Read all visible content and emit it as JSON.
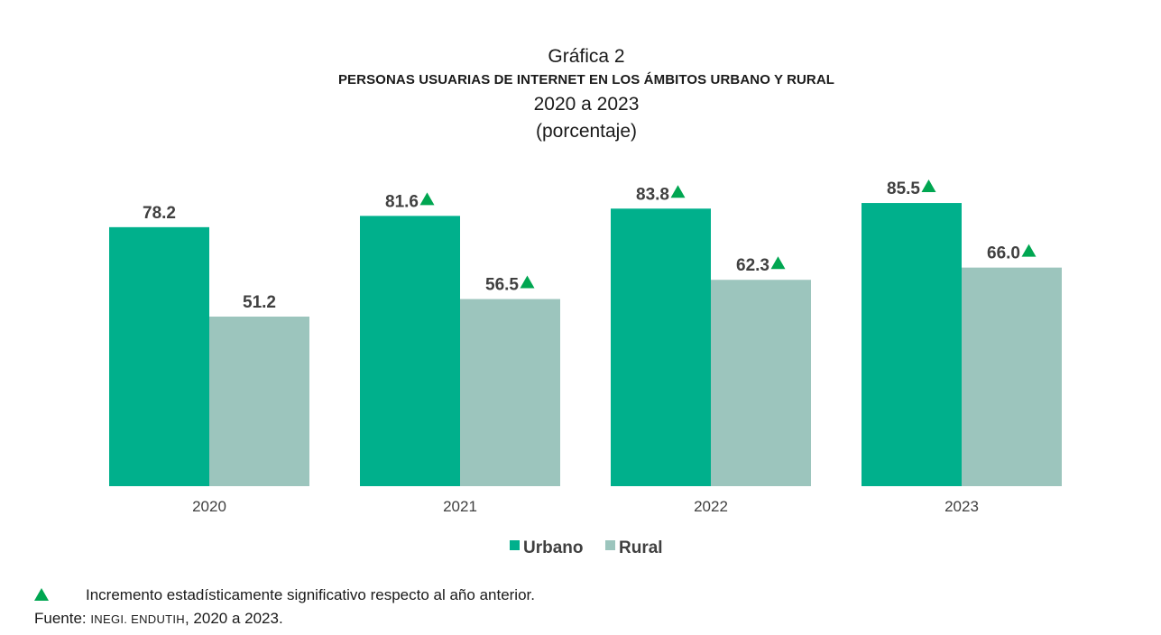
{
  "header": {
    "figure": "Gráfica 2",
    "title": "PERSONAS USUARIAS DE INTERNET EN LOS ÁMBITOS URBANO Y RURAL",
    "period": "2020 a 2023",
    "unit": "(porcentaje)"
  },
  "chart_data": {
    "type": "bar",
    "categories": [
      "2020",
      "2021",
      "2022",
      "2023"
    ],
    "series": [
      {
        "name": "Urbano",
        "values": [
          78.2,
          81.6,
          83.8,
          85.5
        ],
        "significant": [
          false,
          true,
          true,
          true
        ],
        "color": "#00b08c"
      },
      {
        "name": "Rural",
        "values": [
          51.2,
          56.5,
          62.3,
          66.0
        ],
        "significant": [
          false,
          true,
          true,
          true
        ],
        "color": "#9cc5bd"
      }
    ],
    "value_labels": [
      [
        "78.2",
        "81.6",
        "83.8",
        "85.5"
      ],
      [
        "51.2",
        "56.5",
        "62.3",
        "66.0"
      ]
    ],
    "marker_color": "#00a651",
    "ylim": [
      0,
      100
    ],
    "grid": false,
    "legend_position": "bottom-center"
  },
  "footer": {
    "note": "Incremento estadísticamente significativo respecto al año anterior.",
    "source_prefix": "Fuente: ",
    "source_org": "INEGI. ENDUTIH",
    "source_suffix": ", 2020 a 2023."
  }
}
